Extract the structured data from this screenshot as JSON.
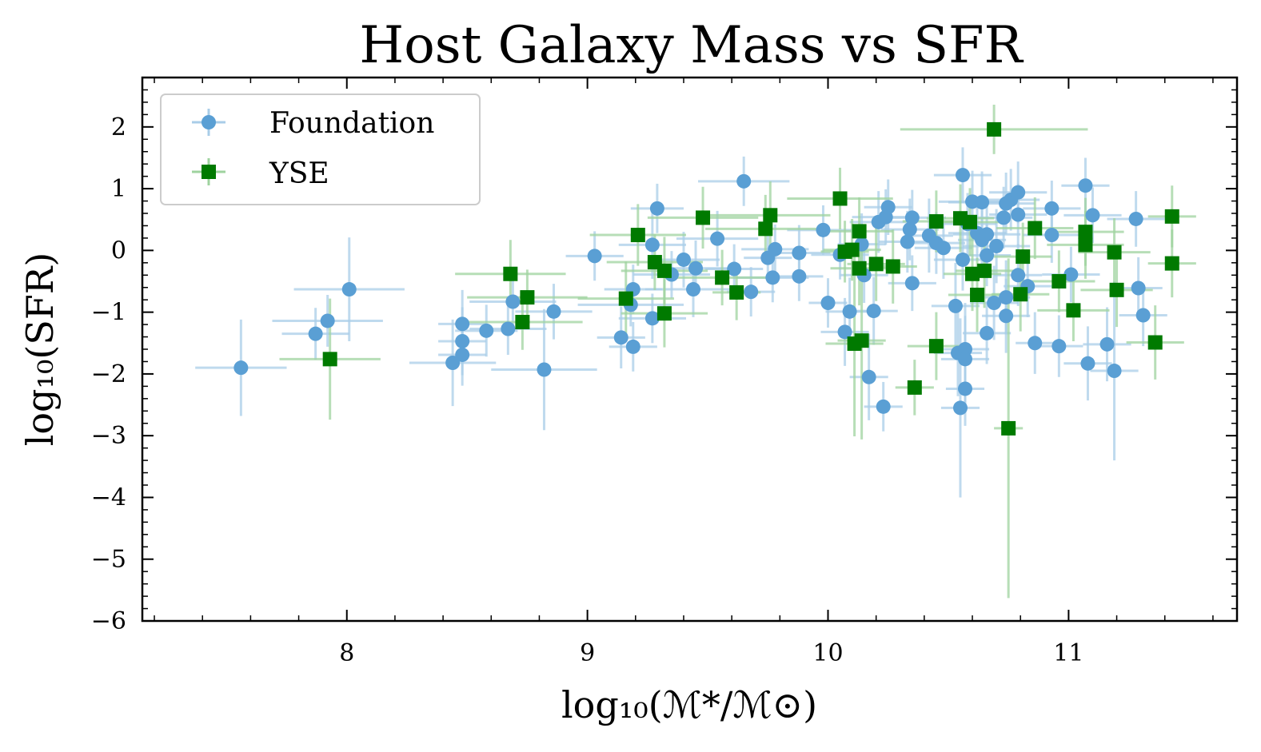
{
  "chart_data": {
    "type": "scatter",
    "title": "Host Galaxy Mass vs SFR",
    "xlabel": "log₁₀(ℳ*/ℳ⊙)",
    "ylabel": "log₁₀(SFR)",
    "xlim": [
      7.15,
      11.7
    ],
    "ylim": [
      -6.0,
      2.8
    ],
    "xticks": [
      8,
      9,
      10,
      11
    ],
    "yticks": [
      -6,
      -5,
      -4,
      -3,
      -2,
      -1,
      0,
      1,
      2
    ],
    "xtick_labels": [
      "8",
      "9",
      "10",
      "11"
    ],
    "ytick_labels": [
      "−6",
      "−5",
      "−4",
      "−3",
      "−2",
      "−1",
      "0",
      "1",
      "2"
    ],
    "grid": false,
    "legend_position": "top-left",
    "series": [
      {
        "name": "Foundation",
        "marker": "circle",
        "color": "#5a9fd4",
        "errorbar_color": "#a9cde8",
        "points": [
          {
            "x": 7.56,
            "y": -1.9,
            "xerr": 0.19,
            "yerr": 0.78
          },
          {
            "x": 7.87,
            "y": -1.35,
            "xerr": 0.14,
            "yerr": 0.42
          },
          {
            "x": 7.92,
            "y": -1.14,
            "xerr": 0.23,
            "yerr": 0.42
          },
          {
            "x": 8.01,
            "y": -0.63,
            "xerr": 0.23,
            "yerr": 0.84
          },
          {
            "x": 8.44,
            "y": -1.82,
            "xerr": 0.18,
            "yerr": 0.7
          },
          {
            "x": 8.48,
            "y": -1.19,
            "xerr": 0.1,
            "yerr": 0.55
          },
          {
            "x": 8.48,
            "y": -1.47,
            "xerr": 0.1,
            "yerr": 0.55
          },
          {
            "x": 8.48,
            "y": -1.69,
            "xerr": 0.1,
            "yerr": 0.5
          },
          {
            "x": 8.58,
            "y": -1.3,
            "xerr": 0.13,
            "yerr": 0.42
          },
          {
            "x": 8.67,
            "y": -1.27,
            "xerr": 0.16,
            "yerr": 0.42
          },
          {
            "x": 8.69,
            "y": -0.83,
            "xerr": 0.18,
            "yerr": 0.5
          },
          {
            "x": 8.82,
            "y": -1.93,
            "xerr": 0.22,
            "yerr": 0.98
          },
          {
            "x": 8.86,
            "y": -0.99,
            "xerr": 0.16,
            "yerr": 0.45
          },
          {
            "x": 9.03,
            "y": -0.09,
            "xerr": 0.12,
            "yerr": 0.4
          },
          {
            "x": 9.14,
            "y": -1.41,
            "xerr": 0.1,
            "yerr": 0.5
          },
          {
            "x": 9.18,
            "y": -0.88,
            "xerr": 0.22,
            "yerr": 0.35
          },
          {
            "x": 9.19,
            "y": -0.63,
            "xerr": 0.12,
            "yerr": 0.4
          },
          {
            "x": 9.19,
            "y": -1.56,
            "xerr": 0.1,
            "yerr": 0.4
          },
          {
            "x": 9.27,
            "y": -1.1,
            "xerr": 0.14,
            "yerr": 0.4
          },
          {
            "x": 9.27,
            "y": 0.09,
            "xerr": 0.14,
            "yerr": 0.55
          },
          {
            "x": 9.29,
            "y": 0.68,
            "xerr": 0.11,
            "yerr": 0.4
          },
          {
            "x": 9.35,
            "y": -0.39,
            "xerr": 0.16,
            "yerr": 0.38
          },
          {
            "x": 9.4,
            "y": -0.15,
            "xerr": 0.15,
            "yerr": 0.45
          },
          {
            "x": 9.45,
            "y": -0.29,
            "xerr": 0.18,
            "yerr": 0.45
          },
          {
            "x": 9.44,
            "y": -0.63,
            "xerr": 0.2,
            "yerr": 0.45
          },
          {
            "x": 9.54,
            "y": 0.19,
            "xerr": 0.17,
            "yerr": 0.45
          },
          {
            "x": 9.61,
            "y": -0.3,
            "xerr": 0.12,
            "yerr": 0.4
          },
          {
            "x": 9.65,
            "y": 1.12,
            "xerr": 0.19,
            "yerr": 0.4
          },
          {
            "x": 9.68,
            "y": -0.67,
            "xerr": 0.1,
            "yerr": 0.4
          },
          {
            "x": 9.75,
            "y": -0.12,
            "xerr": 0.1,
            "yerr": 0.4
          },
          {
            "x": 9.77,
            "y": -0.44,
            "xerr": 0.15,
            "yerr": 0.4
          },
          {
            "x": 9.78,
            "y": 0.02,
            "xerr": 0.14,
            "yerr": 0.4
          },
          {
            "x": 9.88,
            "y": -0.04,
            "xerr": 0.13,
            "yerr": 0.45
          },
          {
            "x": 9.88,
            "y": -0.42,
            "xerr": 0.1,
            "yerr": 0.4
          },
          {
            "x": 9.98,
            "y": 0.33,
            "xerr": 0.15,
            "yerr": 0.4
          },
          {
            "x": 10.0,
            "y": -0.85,
            "xerr": 0.08,
            "yerr": 0.4
          },
          {
            "x": 10.05,
            "y": -0.07,
            "xerr": 0.12,
            "yerr": 0.4
          },
          {
            "x": 10.07,
            "y": -1.32,
            "xerr": 0.1,
            "yerr": 0.55
          },
          {
            "x": 10.09,
            "y": -0.99,
            "xerr": 0.1,
            "yerr": 0.55
          },
          {
            "x": 10.14,
            "y": 0.1,
            "xerr": 0.1,
            "yerr": 0.5
          },
          {
            "x": 10.15,
            "y": -0.4,
            "xerr": 0.1,
            "yerr": 0.45
          },
          {
            "x": 10.17,
            "y": -2.05,
            "xerr": 0.08,
            "yerr": 0.7
          },
          {
            "x": 10.19,
            "y": -0.98,
            "xerr": 0.1,
            "yerr": 0.55
          },
          {
            "x": 10.21,
            "y": 0.46,
            "xerr": 0.12,
            "yerr": 0.5
          },
          {
            "x": 10.23,
            "y": -2.53,
            "xerr": 0.08,
            "yerr": 0.4
          },
          {
            "x": 10.24,
            "y": 0.54,
            "xerr": 0.14,
            "yerr": 0.45
          },
          {
            "x": 10.25,
            "y": 0.7,
            "xerr": 0.1,
            "yerr": 0.45
          },
          {
            "x": 10.33,
            "y": 0.14,
            "xerr": 0.12,
            "yerr": 0.5
          },
          {
            "x": 10.34,
            "y": 0.34,
            "xerr": 0.12,
            "yerr": 0.5
          },
          {
            "x": 10.35,
            "y": 0.53,
            "xerr": 0.14,
            "yerr": 0.45
          },
          {
            "x": 10.35,
            "y": -0.53,
            "xerr": 0.1,
            "yerr": 0.45
          },
          {
            "x": 10.42,
            "y": 0.24,
            "xerr": 0.1,
            "yerr": 0.6
          },
          {
            "x": 10.45,
            "y": 0.12,
            "xerr": 0.12,
            "yerr": 0.5
          },
          {
            "x": 10.48,
            "y": 0.04,
            "xerr": 0.12,
            "yerr": 0.5
          },
          {
            "x": 10.53,
            "y": -0.9,
            "xerr": 0.1,
            "yerr": 0.7
          },
          {
            "x": 10.54,
            "y": -1.66,
            "xerr": 0.1,
            "yerr": 0.7
          },
          {
            "x": 10.55,
            "y": -2.55,
            "xerr": 0.08,
            "yerr": 1.45
          },
          {
            "x": 10.56,
            "y": 1.22,
            "xerr": 0.12,
            "yerr": 0.45
          },
          {
            "x": 10.56,
            "y": -0.15,
            "xerr": 0.12,
            "yerr": 0.5
          },
          {
            "x": 10.57,
            "y": -1.6,
            "xerr": 0.1,
            "yerr": 0.75
          },
          {
            "x": 10.57,
            "y": -1.76,
            "xerr": 0.1,
            "yerr": 0.7
          },
          {
            "x": 10.57,
            "y": -2.24,
            "xerr": 0.08,
            "yerr": 0.6
          },
          {
            "x": 10.58,
            "y": 0.43,
            "xerr": 0.12,
            "yerr": 0.5
          },
          {
            "x": 10.6,
            "y": 0.79,
            "xerr": 0.14,
            "yerr": 0.5
          },
          {
            "x": 10.62,
            "y": 0.28,
            "xerr": 0.12,
            "yerr": 0.45
          },
          {
            "x": 10.64,
            "y": 0.78,
            "xerr": 0.14,
            "yerr": 0.5
          },
          {
            "x": 10.64,
            "y": 0.17,
            "xerr": 0.1,
            "yerr": 0.5
          },
          {
            "x": 10.66,
            "y": 0.26,
            "xerr": 0.14,
            "yerr": 0.5
          },
          {
            "x": 10.66,
            "y": -0.08,
            "xerr": 0.1,
            "yerr": 0.5
          },
          {
            "x": 10.66,
            "y": -1.34,
            "xerr": 0.1,
            "yerr": 0.5
          },
          {
            "x": 10.69,
            "y": -0.85,
            "xerr": 0.1,
            "yerr": 0.6
          },
          {
            "x": 10.7,
            "y": 0.07,
            "xerr": 0.14,
            "yerr": 0.6
          },
          {
            "x": 10.73,
            "y": 0.53,
            "xerr": 0.12,
            "yerr": 0.5
          },
          {
            "x": 10.74,
            "y": 0.76,
            "xerr": 0.12,
            "yerr": 0.5
          },
          {
            "x": 10.74,
            "y": -0.76,
            "xerr": 0.1,
            "yerr": 0.6
          },
          {
            "x": 10.74,
            "y": -1.06,
            "xerr": 0.1,
            "yerr": 0.6
          },
          {
            "x": 10.76,
            "y": 0.82,
            "xerr": 0.12,
            "yerr": 0.5
          },
          {
            "x": 10.79,
            "y": 0.94,
            "xerr": 0.12,
            "yerr": 0.5
          },
          {
            "x": 10.79,
            "y": 0.58,
            "xerr": 0.12,
            "yerr": 0.5
          },
          {
            "x": 10.79,
            "y": -0.4,
            "xerr": 0.1,
            "yerr": 0.5
          },
          {
            "x": 10.83,
            "y": -0.58,
            "xerr": 0.1,
            "yerr": 0.5
          },
          {
            "x": 10.86,
            "y": -1.5,
            "xerr": 0.08,
            "yerr": 0.5
          },
          {
            "x": 10.93,
            "y": 0.68,
            "xerr": 0.12,
            "yerr": 0.45
          },
          {
            "x": 10.93,
            "y": 0.25,
            "xerr": 0.12,
            "yerr": 0.45
          },
          {
            "x": 10.96,
            "y": -1.55,
            "xerr": 0.1,
            "yerr": 0.5
          },
          {
            "x": 11.01,
            "y": -0.39,
            "xerr": 0.12,
            "yerr": 0.45
          },
          {
            "x": 11.07,
            "y": 1.05,
            "xerr": 0.1,
            "yerr": 0.45
          },
          {
            "x": 11.08,
            "y": -1.83,
            "xerr": 0.1,
            "yerr": 0.6
          },
          {
            "x": 11.1,
            "y": 0.57,
            "xerr": 0.12,
            "yerr": 0.45
          },
          {
            "x": 11.16,
            "y": -1.52,
            "xerr": 0.1,
            "yerr": 0.6
          },
          {
            "x": 11.19,
            "y": -1.95,
            "xerr": 0.1,
            "yerr": 1.45
          },
          {
            "x": 11.28,
            "y": 0.51,
            "xerr": 0.12,
            "yerr": 0.45
          },
          {
            "x": 11.29,
            "y": -0.61,
            "xerr": 0.1,
            "yerr": 0.5
          },
          {
            "x": 11.31,
            "y": -1.05,
            "xerr": 0.1,
            "yerr": 0.5
          }
        ]
      },
      {
        "name": "YSE",
        "marker": "square",
        "color": "#007a00",
        "errorbar_color": "#9fd39f",
        "points": [
          {
            "x": 7.93,
            "y": -1.76,
            "xerr": 0.21,
            "yerr": 0.98
          },
          {
            "x": 8.68,
            "y": -0.38,
            "xerr": 0.23,
            "yerr": 0.55
          },
          {
            "x": 8.73,
            "y": -1.16,
            "xerr": 0.25,
            "yerr": 0.45
          },
          {
            "x": 8.75,
            "y": -0.76,
            "xerr": 0.25,
            "yerr": 0.45
          },
          {
            "x": 9.16,
            "y": -0.78,
            "xerr": 0.2,
            "yerr": 0.6
          },
          {
            "x": 9.21,
            "y": 0.25,
            "xerr": 0.2,
            "yerr": 0.5
          },
          {
            "x": 9.28,
            "y": -0.19,
            "xerr": 0.2,
            "yerr": 0.45
          },
          {
            "x": 9.32,
            "y": -1.02,
            "xerr": 0.18,
            "yerr": 0.55
          },
          {
            "x": 9.32,
            "y": -0.33,
            "xerr": 0.18,
            "yerr": 0.55
          },
          {
            "x": 9.48,
            "y": 0.53,
            "xerr": 0.23,
            "yerr": 0.5
          },
          {
            "x": 9.56,
            "y": -0.44,
            "xerr": 0.2,
            "yerr": 0.45
          },
          {
            "x": 9.62,
            "y": -0.68,
            "xerr": 0.1,
            "yerr": 0.45
          },
          {
            "x": 9.74,
            "y": 0.35,
            "xerr": 0.25,
            "yerr": 0.55
          },
          {
            "x": 9.76,
            "y": 0.57,
            "xerr": 0.25,
            "yerr": 0.55
          },
          {
            "x": 10.05,
            "y": 0.84,
            "xerr": 0.22,
            "yerr": 0.5
          },
          {
            "x": 10.07,
            "y": -0.02,
            "xerr": 0.1,
            "yerr": 0.5
          },
          {
            "x": 10.1,
            "y": 0.01,
            "xerr": 0.12,
            "yerr": 0.5
          },
          {
            "x": 10.11,
            "y": -1.51,
            "xerr": 0.12,
            "yerr": 1.5
          },
          {
            "x": 10.13,
            "y": -0.29,
            "xerr": 0.12,
            "yerr": 0.6
          },
          {
            "x": 10.13,
            "y": 0.31,
            "xerr": 0.14,
            "yerr": 0.55
          },
          {
            "x": 10.14,
            "y": -1.46,
            "xerr": 0.1,
            "yerr": 1.6
          },
          {
            "x": 10.2,
            "y": -0.22,
            "xerr": 0.12,
            "yerr": 0.6
          },
          {
            "x": 10.27,
            "y": -0.26,
            "xerr": 0.1,
            "yerr": 0.6
          },
          {
            "x": 10.36,
            "y": -2.22,
            "xerr": 0.08,
            "yerr": 0.45
          },
          {
            "x": 10.45,
            "y": -1.55,
            "xerr": 0.12,
            "yerr": 0.55
          },
          {
            "x": 10.45,
            "y": 0.47,
            "xerr": 0.14,
            "yerr": 0.5
          },
          {
            "x": 10.55,
            "y": 0.52,
            "xerr": 0.14,
            "yerr": 0.55
          },
          {
            "x": 10.59,
            "y": 0.46,
            "xerr": 0.14,
            "yerr": 0.55
          },
          {
            "x": 10.6,
            "y": -0.38,
            "xerr": 0.12,
            "yerr": 0.6
          },
          {
            "x": 10.62,
            "y": -0.72,
            "xerr": 0.12,
            "yerr": 0.6
          },
          {
            "x": 10.65,
            "y": -0.33,
            "xerr": 0.12,
            "yerr": 0.6
          },
          {
            "x": 10.69,
            "y": 1.96,
            "xerr": 0.39,
            "yerr": 0.4
          },
          {
            "x": 10.75,
            "y": -2.88,
            "xerr": 0.06,
            "yerr": 2.75
          },
          {
            "x": 10.8,
            "y": -0.71,
            "xerr": 0.12,
            "yerr": 0.6
          },
          {
            "x": 10.81,
            "y": -0.1,
            "xerr": 0.12,
            "yerr": 0.55
          },
          {
            "x": 10.86,
            "y": 0.36,
            "xerr": 0.16,
            "yerr": 0.5
          },
          {
            "x": 10.96,
            "y": -0.5,
            "xerr": 0.15,
            "yerr": 0.5
          },
          {
            "x": 11.02,
            "y": -0.97,
            "xerr": 0.15,
            "yerr": 0.5
          },
          {
            "x": 11.07,
            "y": 0.3,
            "xerr": 0.16,
            "yerr": 0.55
          },
          {
            "x": 11.07,
            "y": 0.09,
            "xerr": 0.16,
            "yerr": 0.55
          },
          {
            "x": 11.19,
            "y": -0.03,
            "xerr": 0.15,
            "yerr": 0.55
          },
          {
            "x": 11.2,
            "y": -0.64,
            "xerr": 0.15,
            "yerr": 0.6
          },
          {
            "x": 11.36,
            "y": -1.49,
            "xerr": 0.12,
            "yerr": 0.6
          },
          {
            "x": 11.43,
            "y": 0.55,
            "xerr": 0.1,
            "yerr": 0.5
          },
          {
            "x": 11.43,
            "y": -0.21,
            "xerr": 0.1,
            "yerr": 0.55
          }
        ]
      }
    ]
  }
}
